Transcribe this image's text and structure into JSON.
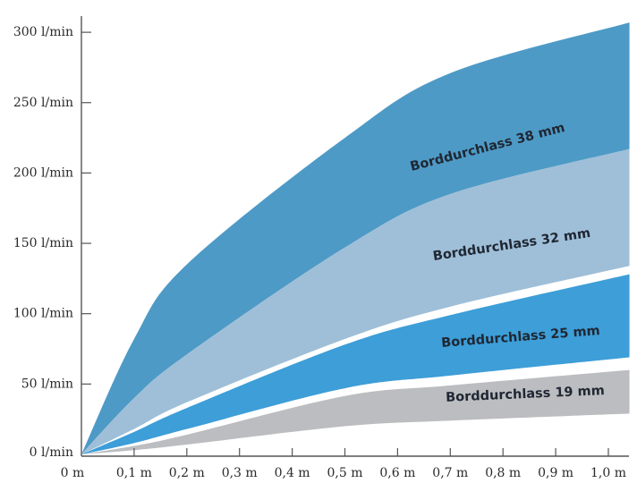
{
  "chart_data": {
    "type": "area",
    "title": "",
    "xlabel": "",
    "ylabel": "",
    "xlim": [
      0,
      1.04
    ],
    "ylim": [
      0,
      300
    ],
    "grid": false,
    "x_ticks": [
      0,
      0.1,
      0.2,
      0.3,
      0.4,
      0.5,
      0.6,
      0.7,
      0.8,
      0.9,
      1.0
    ],
    "x_tick_labels": [
      "0 m",
      "0,1 m",
      "0,2 m",
      "0,3 m",
      "0,4 m",
      "0,5 m",
      "0,6 m",
      "0,7 m",
      "0,8 m",
      "0,9 m",
      "1,0 m"
    ],
    "y_ticks": [
      0,
      50,
      100,
      150,
      200,
      250,
      300
    ],
    "y_tick_labels": [
      "0 l/min",
      "50 l/min",
      "100 l/min",
      "150 l/min",
      "200 l/min",
      "250 l/min",
      "300 l/min"
    ],
    "x": [
      0,
      0.1,
      0.2,
      0.5,
      0.7,
      1.04
    ],
    "series": [
      {
        "name": "Borddurchlass 38 mm",
        "color": "#4e9ac6",
        "upper": [
          0,
          82,
          135,
          225,
          271,
          307
        ],
        "lower": [
          0,
          40,
          71,
          147,
          185,
          217
        ]
      },
      {
        "name": "Borddurchlass 32 mm",
        "color": "#9fbfd8",
        "upper": [
          0,
          40,
          71,
          147,
          185,
          217
        ],
        "lower": [
          0,
          18,
          37,
          82,
          105,
          134
        ]
      },
      {
        "name": "Borddurchlass 25 mm",
        "color": "#3d9ed8",
        "upper": [
          0,
          16,
          33,
          78,
          99,
          128
        ],
        "lower": [
          0,
          8,
          18,
          47,
          56,
          69
        ]
      },
      {
        "name": "Borddurchlass 19 mm",
        "color": "#bcbdc0",
        "upper": [
          0,
          6,
          14,
          41.5,
          49,
          60
        ],
        "lower": [
          0,
          3,
          7,
          20,
          24,
          29
        ]
      }
    ]
  }
}
